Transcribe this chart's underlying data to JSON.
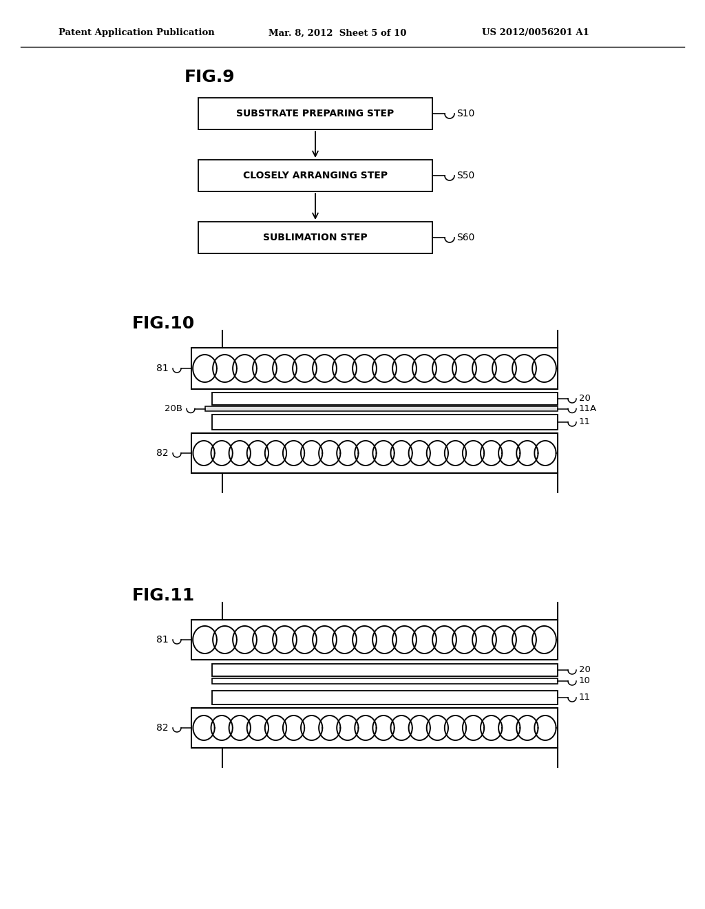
{
  "header_left": "Patent Application Publication",
  "header_mid": "Mar. 8, 2012  Sheet 5 of 10",
  "header_right": "US 2012/0056201 A1",
  "fig9_title": "FIG.9",
  "fig9_boxes": [
    "SUBSTRATE PREPARING STEP",
    "CLOSELY ARRANGING STEP",
    "SUBLIMATION STEP"
  ],
  "fig9_labels": [
    "S10",
    "S50",
    "S60"
  ],
  "fig10_title": "FIG.10",
  "fig11_title": "FIG.11",
  "background_color": "#ffffff",
  "line_color": "#000000",
  "text_color": "#000000"
}
